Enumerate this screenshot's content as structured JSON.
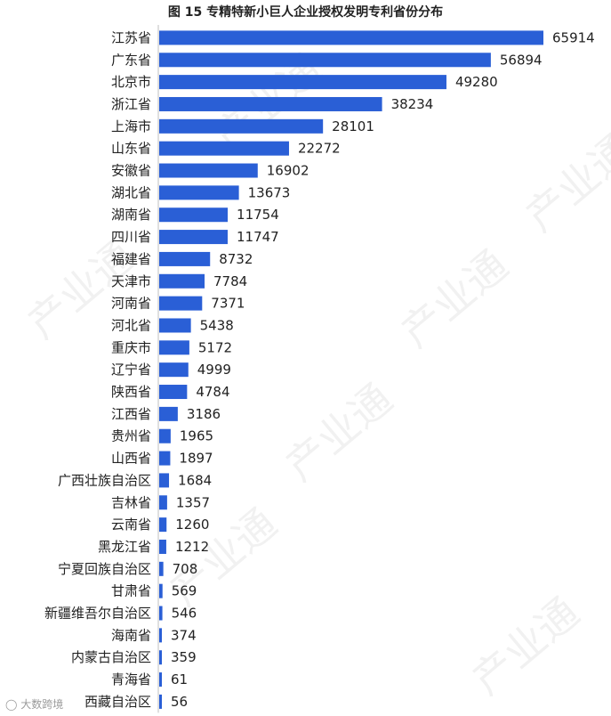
{
  "chart_data": {
    "type": "bar",
    "orientation": "horizontal",
    "title": "图 15  专精特新小巨人企业授权发明专利省份分布",
    "categories": [
      "江苏省",
      "广东省",
      "北京市",
      "浙江省",
      "上海市",
      "山东省",
      "安徽省",
      "湖北省",
      "湖南省",
      "四川省",
      "福建省",
      "天津市",
      "河南省",
      "河北省",
      "重庆市",
      "辽宁省",
      "陕西省",
      "江西省",
      "贵州省",
      "山西省",
      "广西壮族自治区",
      "吉林省",
      "云南省",
      "黑龙江省",
      "宁夏回族自治区",
      "甘肃省",
      "新疆维吾尔自治区",
      "海南省",
      "内蒙古自治区",
      "青海省",
      "西藏自治区"
    ],
    "values": [
      65914,
      56894,
      49280,
      38234,
      28101,
      22272,
      16902,
      13673,
      11754,
      11747,
      8732,
      7784,
      7371,
      5438,
      5172,
      4999,
      4784,
      3186,
      1965,
      1897,
      1684,
      1357,
      1260,
      1212,
      708,
      569,
      546,
      374,
      359,
      61,
      56
    ],
    "bar_color": "#2a5fd6",
    "grid": false,
    "legend": false
  },
  "watermark": {
    "text": "产业通",
    "footer": "大数跨境"
  }
}
